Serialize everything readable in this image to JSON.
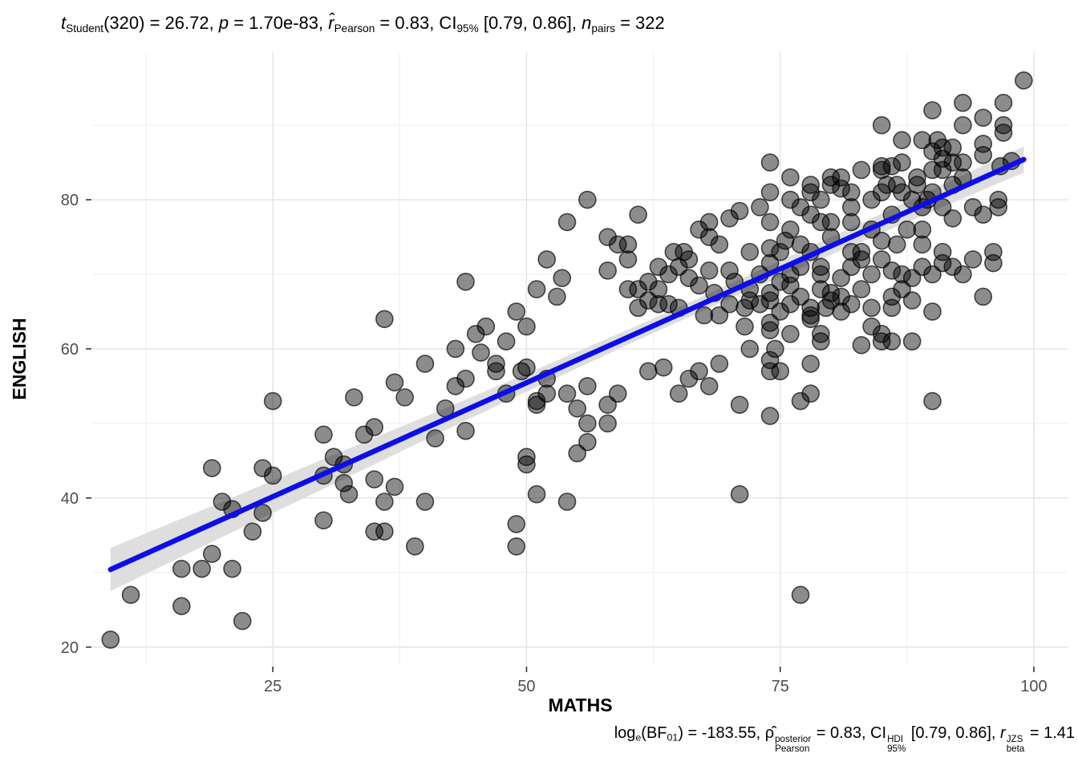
{
  "title": {
    "text": "t Student(320) = 26.72, p = 1.70e-83, r̂ Pearson = 0.83, CI 95% [0.79, 0.86], n pairs = 322",
    "segments": [
      {
        "t": "t",
        "s": "i"
      },
      {
        "t": "Student",
        "s": "sub"
      },
      {
        "t": "(320) = 26.72, ",
        "s": ""
      },
      {
        "t": "p",
        "s": "i"
      },
      {
        "t": " = 1.70e-83, ",
        "s": ""
      },
      {
        "t": "r̂",
        "s": "i"
      },
      {
        "t": "Pearson",
        "s": "sub"
      },
      {
        "t": " = 0.83, CI",
        "s": ""
      },
      {
        "t": "95%",
        "s": "sub"
      },
      {
        "t": " [0.79, 0.86], ",
        "s": ""
      },
      {
        "t": "n",
        "s": "i"
      },
      {
        "t": "pairs",
        "s": "sub"
      },
      {
        "t": " = 322",
        "s": ""
      }
    ]
  },
  "caption": {
    "text": "log e(BF 01) = -183.55, ρ̂ Pearson posterior = 0.83, CI 95% HDI [0.79, 0.86], r beta JZS = 1.41",
    "segments": [
      {
        "t": "log",
        "s": ""
      },
      {
        "t": "e",
        "s": "sub"
      },
      {
        "t": "(BF",
        "s": ""
      },
      {
        "t": "01",
        "s": "sub"
      },
      {
        "t": ") = -183.55, ",
        "s": ""
      },
      {
        "t": "ρ̂",
        "s": ""
      },
      {
        "sup": "posterior",
        "sub": "Pearson"
      },
      {
        "t": " = 0.83, CI",
        "s": ""
      },
      {
        "sup": "HDI",
        "sub": "95%"
      },
      {
        "t": " [0.79, 0.86], ",
        "s": ""
      },
      {
        "t": "r",
        "s": "i"
      },
      {
        "sup": "JZS",
        "sub": "beta"
      },
      {
        "t": " = 1.41",
        "s": ""
      }
    ]
  },
  "chart_data": {
    "type": "scatter",
    "xlabel": "MATHS",
    "ylabel": "ENGLISH",
    "x_ticks": [
      25,
      50,
      75,
      100
    ],
    "y_ticks": [
      20,
      40,
      60,
      80
    ],
    "x_minor": [
      12.5,
      37.5,
      62.5,
      87.5
    ],
    "y_minor": [
      30,
      50,
      70,
      90
    ],
    "xlim": [
      7.2,
      103.4
    ],
    "ylim": [
      17.5,
      99.8
    ],
    "grid": true,
    "legend": "none",
    "stats": {
      "t": 26.72,
      "df": 320,
      "p": "1.70e-83",
      "r_pearson": 0.83,
      "ci_95": [
        0.79,
        0.86
      ],
      "n_pairs": 322,
      "log_e_BF01": -183.55,
      "rho_posterior": 0.83,
      "ci_hdi": [
        0.79,
        0.86
      ],
      "r_beta_jzs": 1.41
    },
    "regression_line": {
      "x1": 9,
      "y1": 30.4,
      "x2": 99,
      "y2": 85.4,
      "color": "#0D0DEB",
      "width": 6.5
    },
    "ci_band": {
      "x": [
        9,
        20,
        30,
        40,
        50,
        60,
        65,
        70,
        75,
        80,
        85,
        90,
        95,
        99
      ],
      "hw": [
        2.9,
        2.35,
        2.0,
        1.55,
        1.2,
        1.0,
        0.95,
        1.0,
        1.1,
        1.2,
        1.3,
        1.45,
        1.6,
        1.75
      ],
      "color": "#DCDCDC"
    },
    "colors": {
      "point_fill": "rgba(0,0,0,0.45)",
      "point_stroke": "rgba(0,0,0,0.68)",
      "grid_major": "#E3E3E3",
      "grid_minor": "#F1F1F1",
      "tick_mark": "#333333",
      "tick_label": "#4D4D4D",
      "axis_title": "#000000",
      "background": "#FFFFFF"
    },
    "point_radius": 10.5,
    "points": [
      [
        9,
        21
      ],
      [
        11,
        27
      ],
      [
        16,
        25.5
      ],
      [
        22,
        23.5
      ],
      [
        16,
        30.5
      ],
      [
        18,
        30.5
      ],
      [
        21,
        30.5
      ],
      [
        19,
        32.5
      ],
      [
        23,
        35.5
      ],
      [
        24,
        38
      ],
      [
        21,
        38.5
      ],
      [
        20,
        39.5
      ],
      [
        19,
        44
      ],
      [
        24,
        44
      ],
      [
        25,
        43
      ],
      [
        25,
        53
      ],
      [
        30,
        43
      ],
      [
        32,
        42
      ],
      [
        32.5,
        40.5
      ],
      [
        35,
        42.5
      ],
      [
        37,
        41.5
      ],
      [
        36,
        39.5
      ],
      [
        30,
        37
      ],
      [
        35,
        35.5
      ],
      [
        36,
        35.5
      ],
      [
        39,
        33.5
      ],
      [
        33,
        53.5
      ],
      [
        36,
        64
      ],
      [
        37,
        55.5
      ],
      [
        38,
        53.5
      ],
      [
        30,
        48.5
      ],
      [
        34,
        48.5
      ],
      [
        35,
        49.5
      ],
      [
        31,
        45.5
      ],
      [
        32,
        44.5
      ],
      [
        50,
        44.5
      ],
      [
        51,
        40.5
      ],
      [
        54,
        39.5
      ],
      [
        40,
        39.5
      ],
      [
        49,
        36.5
      ],
      [
        49,
        33.5
      ],
      [
        50,
        45.5
      ],
      [
        44,
        69
      ],
      [
        52,
        72
      ],
      [
        53,
        67
      ],
      [
        49,
        65
      ],
      [
        50,
        63
      ],
      [
        46,
        63
      ],
      [
        45,
        62
      ],
      [
        43,
        60
      ],
      [
        40,
        58
      ],
      [
        47,
        58
      ],
      [
        47,
        57
      ],
      [
        49.5,
        57
      ],
      [
        50,
        57.5
      ],
      [
        52,
        56
      ],
      [
        44,
        56
      ],
      [
        43,
        55
      ],
      [
        42,
        52
      ],
      [
        48,
        54
      ],
      [
        51,
        53
      ],
      [
        52,
        54
      ],
      [
        51,
        52.5
      ],
      [
        54,
        54
      ],
      [
        41,
        48
      ],
      [
        44,
        49
      ],
      [
        53.5,
        69.5
      ],
      [
        51,
        68
      ],
      [
        48,
        61
      ],
      [
        45.5,
        59.5
      ],
      [
        54,
        77
      ],
      [
        56,
        80
      ],
      [
        55,
        52
      ],
      [
        55,
        46
      ],
      [
        60,
        72
      ],
      [
        63,
        71
      ],
      [
        65,
        71
      ],
      [
        66,
        72
      ],
      [
        70,
        70.5
      ],
      [
        67,
        68.5
      ],
      [
        62,
        69
      ],
      [
        61,
        68
      ],
      [
        60,
        68
      ],
      [
        63,
        68
      ],
      [
        61,
        65.5
      ],
      [
        63,
        66
      ],
      [
        64,
        66
      ],
      [
        68.5,
        67.5
      ],
      [
        69,
        64.5
      ],
      [
        70,
        66
      ],
      [
        67.5,
        64.5
      ],
      [
        56,
        55
      ],
      [
        59,
        54
      ],
      [
        58,
        52.5
      ],
      [
        56,
        50
      ],
      [
        56,
        47.5
      ],
      [
        58,
        50
      ],
      [
        65,
        54
      ],
      [
        63.5,
        57.5
      ],
      [
        62,
        57
      ],
      [
        67,
        57
      ],
      [
        69,
        58
      ],
      [
        61,
        78
      ],
      [
        58,
        75
      ],
      [
        59,
        74
      ],
      [
        60,
        74
      ],
      [
        64.5,
        73
      ],
      [
        65.5,
        73
      ],
      [
        67,
        76
      ],
      [
        68,
        75
      ],
      [
        68,
        77
      ],
      [
        69,
        74
      ],
      [
        70,
        77.5
      ],
      [
        71,
        78.5
      ],
      [
        71,
        52.5
      ],
      [
        64,
        70
      ],
      [
        66,
        69.5
      ],
      [
        68,
        70.5
      ],
      [
        62,
        66.5
      ],
      [
        65,
        65.5
      ],
      [
        66,
        56
      ],
      [
        68,
        55
      ],
      [
        58,
        70.5
      ],
      [
        70.5,
        69
      ],
      [
        74,
        71.5
      ],
      [
        79,
        71
      ],
      [
        77,
        71
      ],
      [
        82,
        71
      ],
      [
        83,
        72
      ],
      [
        85,
        72
      ],
      [
        84,
        70
      ],
      [
        89,
        71
      ],
      [
        91,
        71.5
      ],
      [
        90,
        70
      ],
      [
        96,
        71.5
      ],
      [
        75,
        69
      ],
      [
        74,
        67.5
      ],
      [
        72,
        66.5
      ],
      [
        71.5,
        65.5
      ],
      [
        74,
        66.5
      ],
      [
        73,
        66
      ],
      [
        76,
        66
      ],
      [
        79,
        68
      ],
      [
        80,
        67.5
      ],
      [
        81,
        67
      ],
      [
        80,
        66.5
      ],
      [
        78,
        65.5
      ],
      [
        79.5,
        65.5
      ],
      [
        81,
        65
      ],
      [
        78,
        64.5
      ],
      [
        78,
        64
      ],
      [
        83,
        68
      ],
      [
        86,
        67
      ],
      [
        87,
        68
      ],
      [
        95,
        67
      ],
      [
        90,
        65
      ],
      [
        84,
        63
      ],
      [
        85,
        62
      ],
      [
        85,
        61
      ],
      [
        88,
        61
      ],
      [
        79,
        62
      ],
      [
        79,
        61
      ],
      [
        74,
        63.5
      ],
      [
        74,
        62.5
      ],
      [
        71.5,
        63
      ],
      [
        72,
        60
      ],
      [
        74.5,
        60
      ],
      [
        74,
        58.5
      ],
      [
        74,
        57
      ],
      [
        75,
        57
      ],
      [
        78,
        58
      ],
      [
        77,
        53
      ],
      [
        78,
        54
      ],
      [
        74,
        51
      ],
      [
        90,
        53
      ],
      [
        77,
        27
      ],
      [
        71,
        40.5
      ],
      [
        99,
        96
      ],
      [
        93,
        93
      ],
      [
        97,
        93
      ],
      [
        90,
        92
      ],
      [
        95,
        91
      ],
      [
        93,
        90
      ],
      [
        97,
        90
      ],
      [
        97,
        89
      ],
      [
        85,
        90
      ],
      [
        87,
        88
      ],
      [
        89,
        88
      ],
      [
        90.5,
        88
      ],
      [
        91,
        87
      ],
      [
        92,
        87
      ],
      [
        90,
        86.5
      ],
      [
        91,
        85.5
      ],
      [
        90,
        84
      ],
      [
        91,
        84
      ],
      [
        92,
        85
      ],
      [
        95,
        87.5
      ],
      [
        95,
        86
      ],
      [
        85,
        84.5
      ],
      [
        86,
        84.5
      ],
      [
        87,
        85
      ],
      [
        85,
        84
      ],
      [
        74,
        85
      ],
      [
        76,
        83
      ],
      [
        76,
        80
      ],
      [
        74,
        81
      ],
      [
        73,
        79
      ],
      [
        78,
        82
      ],
      [
        78,
        81
      ],
      [
        79,
        80
      ],
      [
        80,
        83
      ],
      [
        81,
        83
      ],
      [
        80,
        82
      ],
      [
        81,
        81.5
      ],
      [
        82,
        81
      ],
      [
        83,
        84
      ],
      [
        85,
        81
      ],
      [
        85.5,
        82
      ],
      [
        86.5,
        82
      ],
      [
        87,
        81
      ],
      [
        88.5,
        82
      ],
      [
        88.5,
        83
      ],
      [
        89.5,
        80
      ],
      [
        89,
        79
      ],
      [
        91,
        79
      ],
      [
        92,
        77.5
      ],
      [
        93,
        83
      ],
      [
        94,
        79
      ],
      [
        95,
        78
      ],
      [
        96.5,
        80
      ],
      [
        96.5,
        79
      ],
      [
        78,
        78
      ],
      [
        79,
        77
      ],
      [
        80,
        77
      ],
      [
        77,
        79
      ],
      [
        74,
        77
      ],
      [
        72,
        73
      ],
      [
        74,
        73.5
      ],
      [
        75,
        73
      ],
      [
        77,
        74
      ],
      [
        78,
        73
      ],
      [
        82,
        73
      ],
      [
        83,
        73
      ],
      [
        85,
        74.5
      ],
      [
        86.5,
        74
      ],
      [
        87.5,
        76
      ],
      [
        89,
        76
      ],
      [
        91,
        73
      ],
      [
        96,
        73
      ],
      [
        75.5,
        74.5
      ],
      [
        76,
        76
      ],
      [
        97.8,
        85.2
      ],
      [
        96.7,
        84.5
      ],
      [
        73,
        70
      ],
      [
        76,
        68.5
      ],
      [
        77,
        67
      ],
      [
        82,
        66
      ],
      [
        84,
        65.5
      ],
      [
        86,
        65.5
      ],
      [
        88,
        66.5
      ],
      [
        92,
        71
      ],
      [
        93,
        70
      ],
      [
        88,
        69.5
      ],
      [
        86,
        70.5
      ],
      [
        81,
        69.5
      ],
      [
        79,
        70
      ],
      [
        75,
        65
      ],
      [
        76,
        62
      ],
      [
        83,
        60.5
      ],
      [
        86,
        61
      ],
      [
        72,
        68
      ],
      [
        76,
        70
      ],
      [
        87,
        70
      ],
      [
        94,
        72
      ],
      [
        89,
        74
      ],
      [
        84,
        76
      ],
      [
        80,
        75
      ],
      [
        82,
        77
      ],
      [
        86,
        78
      ],
      [
        88,
        80
      ],
      [
        84,
        80
      ],
      [
        82,
        79
      ],
      [
        90,
        81
      ],
      [
        92,
        82
      ],
      [
        93,
        85
      ]
    ]
  }
}
